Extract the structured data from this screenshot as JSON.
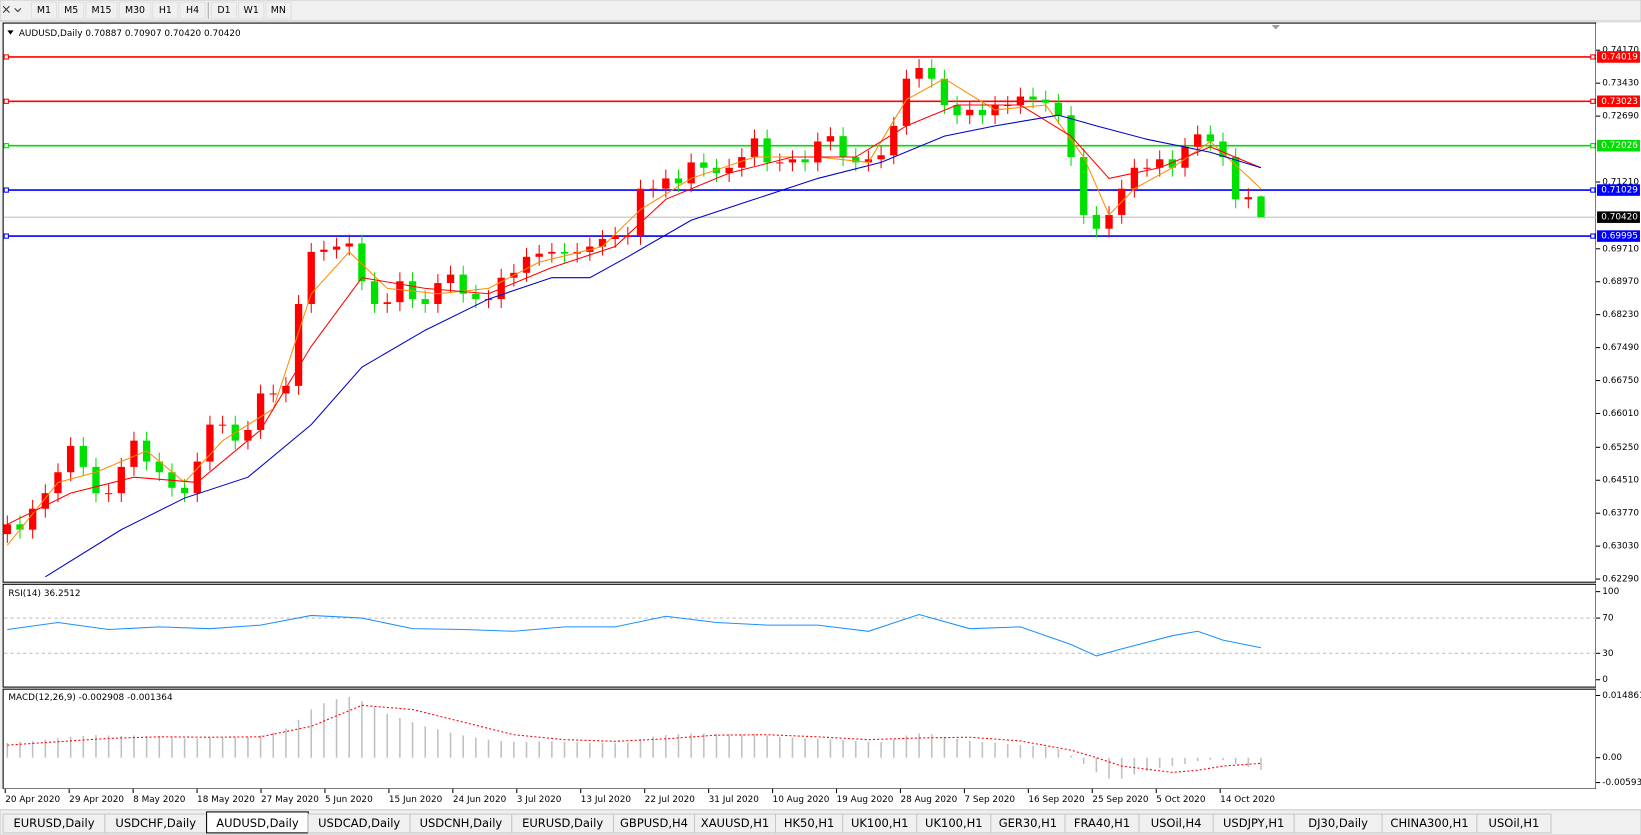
{
  "toolbar": {
    "timeframes": [
      "M1",
      "M5",
      "M15",
      "M30",
      "H1",
      "H4",
      "D1",
      "W1",
      "MN"
    ]
  },
  "tabs": {
    "items": [
      "EURUSD,Daily",
      "USDCHF,Daily",
      "AUDUSD,Daily",
      "USDCAD,Daily",
      "USDCNH,Daily",
      "EURUSD,Daily",
      "GBPUSD,H4",
      "XAUUSD,H1",
      "HK50,H1",
      "UK100,H1",
      "UK100,H1",
      "GER30,H1",
      "FRA40,H1",
      "USOil,H4",
      "USDJPY,H1",
      "DJ30,Daily",
      "CHINA300,H1",
      "USOil,H1"
    ],
    "active": 2
  },
  "chart_data": [
    {
      "type": "candlestick",
      "title": "AUDUSD,Daily  0.70887 0.70907 0.70420 0.70420",
      "up_color": "#ff0000",
      "down_color": "#00e000",
      "open": [
        0.633,
        0.6352,
        0.634,
        0.6387,
        0.6422,
        0.6469,
        0.6528,
        0.6481,
        0.6422,
        0.6422,
        0.6481,
        0.654,
        0.6493,
        0.6469,
        0.6434,
        0.6422,
        0.6493,
        0.6576,
        0.6576,
        0.654,
        0.6564,
        0.6646,
        0.6646,
        0.6663,
        0.6847,
        0.6964,
        0.6969,
        0.6976,
        0.6983,
        0.6898,
        0.6847,
        0.6851,
        0.6898,
        0.6858,
        0.6847,
        0.6894,
        0.6913,
        0.687,
        0.6858,
        0.6858,
        0.6906,
        0.6917,
        0.6953,
        0.696,
        0.6964,
        0.696,
        0.6964,
        0.6976,
        0.6993,
        0.7,
        0.7,
        0.7106,
        0.7106,
        0.7129,
        0.7118,
        0.7165,
        0.7153,
        0.7141,
        0.7153,
        0.7177,
        0.7219,
        0.7165,
        0.7165,
        0.7172,
        0.7165,
        0.7212,
        0.7224,
        0.7177,
        0.7165,
        0.7172,
        0.7181,
        0.7247,
        0.7353,
        0.7377,
        0.7353,
        0.7294,
        0.7271,
        0.7283,
        0.7271,
        0.7294,
        0.7294,
        0.7313,
        0.7306,
        0.7299,
        0.7271,
        0.7177,
        0.7047,
        0.7016,
        0.7047,
        0.7106,
        0.7153,
        0.7153,
        0.7172,
        0.7153,
        0.72,
        0.7228,
        0.7212,
        0.7177,
        0.7082,
        0.70887
      ],
      "high": [
        0.6372,
        0.6372,
        0.6407,
        0.6442,
        0.6489,
        0.6548,
        0.6548,
        0.6501,
        0.6442,
        0.6501,
        0.656,
        0.656,
        0.6513,
        0.6489,
        0.6454,
        0.6513,
        0.6596,
        0.6596,
        0.6596,
        0.6584,
        0.6666,
        0.6666,
        0.6683,
        0.6867,
        0.6984,
        0.6989,
        0.6996,
        0.7003,
        0.7003,
        0.6918,
        0.6871,
        0.6918,
        0.6918,
        0.6878,
        0.6914,
        0.6933,
        0.6933,
        0.689,
        0.6878,
        0.6926,
        0.6937,
        0.6973,
        0.698,
        0.6984,
        0.6984,
        0.6984,
        0.6996,
        0.7013,
        0.702,
        0.702,
        0.7126,
        0.7126,
        0.7149,
        0.7149,
        0.7185,
        0.7185,
        0.7173,
        0.7173,
        0.7197,
        0.7239,
        0.7239,
        0.7185,
        0.7192,
        0.7192,
        0.7232,
        0.7244,
        0.7244,
        0.7197,
        0.7192,
        0.7201,
        0.7267,
        0.7373,
        0.7397,
        0.7397,
        0.7373,
        0.7314,
        0.7303,
        0.7303,
        0.7314,
        0.7314,
        0.7333,
        0.7333,
        0.7326,
        0.7319,
        0.7291,
        0.7197,
        0.7067,
        0.7067,
        0.7126,
        0.7173,
        0.7173,
        0.7192,
        0.7192,
        0.722,
        0.7248,
        0.7248,
        0.7232,
        0.7197,
        0.7107,
        0.70907
      ],
      "low": [
        0.631,
        0.632,
        0.632,
        0.6367,
        0.6402,
        0.6449,
        0.6461,
        0.6402,
        0.6402,
        0.6402,
        0.6461,
        0.6473,
        0.6449,
        0.6414,
        0.6402,
        0.6402,
        0.6473,
        0.6556,
        0.652,
        0.652,
        0.6544,
        0.6626,
        0.6626,
        0.6643,
        0.6827,
        0.6944,
        0.6949,
        0.6956,
        0.6878,
        0.6827,
        0.6827,
        0.6831,
        0.6838,
        0.6827,
        0.6827,
        0.6874,
        0.685,
        0.6838,
        0.6838,
        0.6838,
        0.6886,
        0.6897,
        0.6933,
        0.694,
        0.694,
        0.694,
        0.6944,
        0.6956,
        0.6973,
        0.698,
        0.698,
        0.7086,
        0.7086,
        0.7098,
        0.7098,
        0.7133,
        0.7121,
        0.7121,
        0.7133,
        0.7157,
        0.7145,
        0.7145,
        0.7145,
        0.7145,
        0.7145,
        0.7192,
        0.7157,
        0.7145,
        0.7145,
        0.7152,
        0.7161,
        0.7227,
        0.7333,
        0.7333,
        0.7274,
        0.7251,
        0.7251,
        0.7251,
        0.7251,
        0.7274,
        0.7274,
        0.7286,
        0.7279,
        0.7251,
        0.7157,
        0.7027,
        0.6996,
        0.6996,
        0.7027,
        0.7086,
        0.7133,
        0.7133,
        0.7133,
        0.7133,
        0.718,
        0.7192,
        0.7157,
        0.7062,
        0.7062,
        0.7042
      ],
      "close": [
        0.6352,
        0.634,
        0.6387,
        0.6422,
        0.6469,
        0.6528,
        0.6481,
        0.6422,
        0.6422,
        0.6481,
        0.654,
        0.6493,
        0.6469,
        0.6434,
        0.6422,
        0.6493,
        0.6576,
        0.6576,
        0.654,
        0.6564,
        0.6646,
        0.6646,
        0.6663,
        0.6847,
        0.6964,
        0.6969,
        0.6976,
        0.6983,
        0.6898,
        0.6847,
        0.6851,
        0.6898,
        0.6858,
        0.6847,
        0.6894,
        0.6913,
        0.687,
        0.6858,
        0.6858,
        0.6906,
        0.6917,
        0.6953,
        0.696,
        0.6964,
        0.696,
        0.6964,
        0.6976,
        0.6993,
        0.7,
        0.7,
        0.7106,
        0.7106,
        0.7129,
        0.7118,
        0.7165,
        0.7153,
        0.7141,
        0.7153,
        0.7177,
        0.7219,
        0.7165,
        0.7165,
        0.7172,
        0.7165,
        0.7212,
        0.7224,
        0.7177,
        0.7165,
        0.7172,
        0.7181,
        0.7247,
        0.7353,
        0.7377,
        0.7353,
        0.7294,
        0.7271,
        0.7283,
        0.7271,
        0.7294,
        0.7294,
        0.7313,
        0.7306,
        0.7299,
        0.7271,
        0.7177,
        0.7047,
        0.7016,
        0.7047,
        0.7106,
        0.7153,
        0.7153,
        0.7172,
        0.7153,
        0.72,
        0.7228,
        0.7212,
        0.7177,
        0.7082,
        0.7087,
        0.7042
      ],
      "overlays": [
        {
          "color": "#ff8c00",
          "x": [
            0,
            4,
            7,
            11,
            14,
            17,
            21,
            24,
            27,
            30,
            34,
            38,
            42,
            47,
            50,
            54,
            59,
            64,
            68,
            71,
            74,
            78,
            82,
            85,
            87,
            89,
            92,
            95,
            99
          ],
          "values": [
            0.6305,
            0.6446,
            0.6469,
            0.6517,
            0.6446,
            0.654,
            0.6611,
            0.687,
            0.6964,
            0.6882,
            0.687,
            0.6882,
            0.6941,
            0.6976,
            0.7059,
            0.7129,
            0.7177,
            0.7177,
            0.7165,
            0.7306,
            0.7353,
            0.7283,
            0.7294,
            0.7177,
            0.7047,
            0.7106,
            0.7153,
            0.7212,
            0.7106
          ]
        },
        {
          "color": "#ff0000",
          "x": [
            0,
            5,
            10,
            15,
            20,
            24,
            28,
            33,
            38,
            43,
            48,
            52,
            57,
            62,
            67,
            71,
            75,
            80,
            84,
            87,
            91,
            95,
            99
          ],
          "values": [
            0.6352,
            0.6422,
            0.6458,
            0.6446,
            0.6564,
            0.6752,
            0.6906,
            0.6882,
            0.687,
            0.6929,
            0.6976,
            0.7082,
            0.7141,
            0.7177,
            0.7177,
            0.7247,
            0.7294,
            0.7294,
            0.7224,
            0.7129,
            0.7153,
            0.72,
            0.7153
          ]
        },
        {
          "color": "#0000cd",
          "x": [
            3,
            9,
            14,
            19,
            24,
            28,
            33,
            38,
            43,
            46,
            49,
            54,
            59,
            64,
            69,
            74,
            78,
            83,
            86,
            90,
            95,
            99
          ],
          "values": [
            0.6234,
            0.634,
            0.6411,
            0.6458,
            0.6576,
            0.6705,
            0.6788,
            0.6858,
            0.6906,
            0.6906,
            0.6953,
            0.7035,
            0.7082,
            0.7129,
            0.7165,
            0.7224,
            0.7247,
            0.7271,
            0.7247,
            0.7217,
            0.7188,
            0.7153
          ]
        }
      ],
      "levels": [
        {
          "value": 0.74019,
          "label": "0.74019",
          "color": "#ff0000"
        },
        {
          "value": 0.73023,
          "label": "0.73023",
          "color": "#ff0000"
        },
        {
          "value": 0.72026,
          "label": "0.72026",
          "color": "#00dd00"
        },
        {
          "value": 0.71029,
          "label": "0.71029",
          "color": "#0000ff"
        },
        {
          "value": 0.69995,
          "label": "0.69995",
          "color": "#0000ff"
        }
      ],
      "last_price": {
        "value": 0.7042,
        "label": "0.70420"
      },
      "ylim": [
        0.6222,
        0.7478
      ],
      "yticks": [
        {
          "value": 0.7417,
          "label": "0.74170"
        },
        {
          "value": 0.7343,
          "label": "0.73430"
        },
        {
          "value": 0.7269,
          "label": "0.72690"
        },
        {
          "value": 0.7121,
          "label": "0.71210"
        },
        {
          "value": 0.6971,
          "label": "0.69710"
        },
        {
          "value": 0.6897,
          "label": "0.68970"
        },
        {
          "value": 0.6823,
          "label": "0.68230"
        },
        {
          "value": 0.6749,
          "label": "0.67490"
        },
        {
          "value": 0.6675,
          "label": "0.66750"
        },
        {
          "value": 0.6601,
          "label": "0.66010"
        },
        {
          "value": 0.6525,
          "label": "0.65250"
        },
        {
          "value": 0.6451,
          "label": "0.64510"
        },
        {
          "value": 0.6377,
          "label": "0.63770"
        },
        {
          "value": 0.6303,
          "label": "0.63030"
        },
        {
          "value": 0.6229,
          "label": "0.62290"
        }
      ],
      "date_labels": [
        "20 Apr 2020",
        "29 Apr 2020",
        "8 May 2020",
        "18 May 2020",
        "27 May 2020",
        "5 Jun 2020",
        "15 Jun 2020",
        "24 Jun 2020",
        "3 Jul 2020",
        "13 Jul 2020",
        "22 Jul 2020",
        "31 Jul 2020",
        "10 Aug 2020",
        "19 Aug 2020",
        "28 Aug 2020",
        "7 Sep 2020",
        "16 Sep 2020",
        "25 Sep 2020",
        "5 Oct 2020",
        "14 Oct 2020"
      ]
    },
    {
      "type": "line",
      "title": "RSI(14) 36.2512",
      "color": "#1e90ff",
      "x": [
        0,
        4,
        8,
        12,
        16,
        20,
        24,
        28,
        32,
        36,
        40,
        44,
        48,
        52,
        56,
        60,
        64,
        68,
        72,
        76,
        80,
        84,
        86,
        88,
        92,
        94,
        96,
        99
      ],
      "values": [
        57,
        65,
        57,
        60,
        58,
        62,
        73,
        70,
        58,
        57,
        55,
        60,
        60,
        72,
        65,
        62,
        62,
        55,
        74,
        58,
        60,
        40,
        27,
        35,
        50,
        55,
        45,
        36.2512
      ],
      "levels": [
        70,
        30
      ],
      "ylim": [
        0,
        100
      ],
      "yticks": [
        100,
        70,
        30,
        0
      ]
    },
    {
      "type": "macd",
      "title": "MACD(12,26,9) -0.002908 -0.001364",
      "bar_color": "#c0c0c0",
      "signal_color": "#ff0000",
      "values": [
        0.0035,
        0.0038,
        0.004,
        0.0043,
        0.0046,
        0.005,
        0.0052,
        0.0054,
        0.0053,
        0.0052,
        0.0053,
        0.0052,
        0.005,
        0.0048,
        0.0046,
        0.0046,
        0.0048,
        0.0049,
        0.0048,
        0.0049,
        0.0053,
        0.006,
        0.007,
        0.009,
        0.0115,
        0.013,
        0.014,
        0.0145,
        0.0135,
        0.012,
        0.0105,
        0.0095,
        0.0085,
        0.0075,
        0.0068,
        0.006,
        0.0053,
        0.0048,
        0.0043,
        0.004,
        0.0038,
        0.0038,
        0.0039,
        0.0039,
        0.0038,
        0.0037,
        0.0036,
        0.0036,
        0.0035,
        0.0036,
        0.0045,
        0.005,
        0.0054,
        0.0056,
        0.0058,
        0.0058,
        0.0057,
        0.0056,
        0.0055,
        0.0057,
        0.0053,
        0.005,
        0.0048,
        0.0046,
        0.0045,
        0.0044,
        0.0042,
        0.004,
        0.0038,
        0.0037,
        0.0043,
        0.0053,
        0.0058,
        0.0056,
        0.005,
        0.0045,
        0.004,
        0.0038,
        0.0036,
        0.0033,
        0.003,
        0.0028,
        0.0026,
        0.002,
        0.0005,
        -0.0015,
        -0.0035,
        -0.005,
        -0.005,
        -0.004,
        -0.0032,
        -0.0025,
        -0.002,
        -0.0015,
        -0.0008,
        -0.0005,
        -0.0006,
        -0.0015,
        -0.0022,
        -0.002908
      ],
      "signal_x": [
        0,
        4,
        8,
        12,
        16,
        20,
        24,
        28,
        32,
        36,
        40,
        44,
        48,
        52,
        56,
        60,
        64,
        68,
        72,
        76,
        80,
        84,
        86,
        88,
        92,
        94,
        96,
        99
      ],
      "signal": [
        0.003,
        0.0038,
        0.0046,
        0.005,
        0.0049,
        0.005,
        0.0075,
        0.0125,
        0.0115,
        0.0085,
        0.0055,
        0.0043,
        0.0039,
        0.0045,
        0.0054,
        0.0055,
        0.005,
        0.0043,
        0.0047,
        0.0049,
        0.004,
        0.0018,
        0.0,
        -0.002,
        -0.0035,
        -0.003,
        -0.002,
        -0.001364
      ],
      "ylim": [
        -0.005938,
        0.014861
      ],
      "yticks": [
        0.014861,
        {
          "value": 0,
          "label": "0.00"
        },
        -0.005938
      ]
    }
  ]
}
